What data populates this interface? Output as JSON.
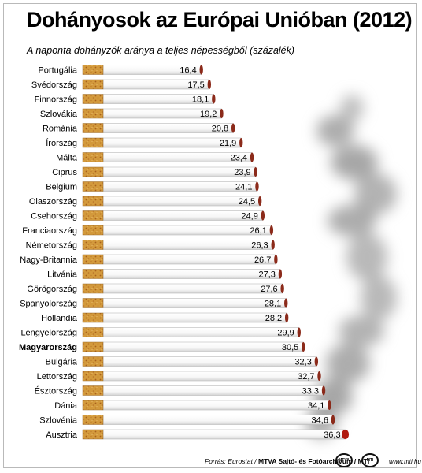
{
  "title": "Dohányosok az Európai Unióban (2012)",
  "subtitle": "A naponta dohányzók aránya a teljes népességből (százalék)",
  "footer": {
    "source_prefix": "Forrás: Eurostat / ",
    "source_bold": "MTVA Sajtó- és Fotóarchívum / MTI",
    "url": "www.mti.hu"
  },
  "colors": {
    "filter": "#d39a3c",
    "filter_speckle": "#a8601c",
    "paper": "#ffffff",
    "paper_edge": "#b8b8b8",
    "ash": "#8b2a1a",
    "ember": "#b01a10",
    "highlight_label": "#000000"
  },
  "chart_data": {
    "type": "bar",
    "title": "Dohányosok az Európai Unióban (2012)",
    "subtitle": "A naponta dohányzók aránya a teljes népességből (százalék)",
    "orientation": "horizontal",
    "bar_style": "cigarette",
    "highlighted_category": "Magyarország",
    "categories": [
      "Portugália",
      "Svédország",
      "Finnország",
      "Szlovákia",
      "Románia",
      "Írország",
      "Málta",
      "Ciprus",
      "Belgium",
      "Olaszország",
      "Csehország",
      "Franciaország",
      "Németország",
      "Nagy-Britannia",
      "Litvánia",
      "Görögország",
      "Spanyolország",
      "Hollandia",
      "Lengyelország",
      "Magyarország",
      "Bulgária",
      "Lettország",
      "Észtország",
      "Dánia",
      "Szlovénia",
      "Ausztria"
    ],
    "value_labels": [
      "16,4",
      "17,5",
      "18,1",
      "19,2",
      "20,8",
      "21,9",
      "23,4",
      "23,9",
      "24,1",
      "24,5",
      "24,9",
      "26,1",
      "26,3",
      "26,7",
      "27,3",
      "27,6",
      "28,1",
      "28,2",
      "29,9",
      "30,5",
      "32,3",
      "32,7",
      "33,3",
      "34,1",
      "34,6",
      "36,3"
    ],
    "values": [
      16.4,
      17.5,
      18.1,
      19.2,
      20.8,
      21.9,
      23.4,
      23.9,
      24.1,
      24.5,
      24.9,
      26.1,
      26.3,
      26.7,
      27.3,
      27.6,
      28.1,
      28.2,
      29.9,
      30.5,
      32.3,
      32.7,
      33.3,
      34.1,
      34.6,
      36.3
    ],
    "xlabel": "",
    "ylabel": "",
    "grid": false
  }
}
